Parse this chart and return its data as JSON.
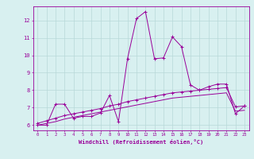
{
  "x_line1": [
    0,
    1,
    2,
    3,
    4,
    5,
    6,
    7,
    8,
    9,
    10,
    11,
    12,
    13,
    14,
    15,
    16,
    17,
    18,
    19,
    20,
    21,
    22,
    23
  ],
  "y_line1": [
    6.0,
    6.0,
    7.2,
    7.2,
    6.4,
    6.5,
    6.5,
    6.7,
    7.7,
    6.2,
    9.8,
    12.1,
    12.5,
    9.8,
    9.85,
    11.05,
    10.5,
    8.3,
    8.0,
    8.2,
    8.35,
    8.35,
    6.65,
    7.1
  ],
  "x_line2": [
    0,
    1,
    2,
    3,
    4,
    5,
    6,
    7,
    8,
    9,
    10,
    11,
    12,
    13,
    14,
    15,
    16,
    17,
    18,
    19,
    20,
    21,
    22,
    23
  ],
  "y_line2": [
    6.1,
    6.25,
    6.4,
    6.55,
    6.65,
    6.75,
    6.85,
    6.95,
    7.1,
    7.2,
    7.35,
    7.45,
    7.55,
    7.65,
    7.75,
    7.85,
    7.9,
    7.95,
    8.0,
    8.05,
    8.1,
    8.15,
    7.05,
    7.1
  ],
  "x_line3": [
    0,
    1,
    2,
    3,
    4,
    5,
    6,
    7,
    8,
    9,
    10,
    11,
    12,
    13,
    14,
    15,
    16,
    17,
    18,
    19,
    20,
    21,
    22,
    23
  ],
  "y_line3": [
    6.0,
    6.1,
    6.2,
    6.35,
    6.45,
    6.55,
    6.65,
    6.75,
    6.85,
    6.95,
    7.05,
    7.15,
    7.25,
    7.35,
    7.45,
    7.55,
    7.6,
    7.65,
    7.7,
    7.75,
    7.8,
    7.85,
    6.8,
    6.85
  ],
  "line_color": "#990099",
  "bg_color": "#d8f0f0",
  "grid_color": "#b8d8d8",
  "xlabel": "Windchill (Refroidissement éolien,°C)",
  "ylabel_ticks": [
    6,
    7,
    8,
    9,
    10,
    11,
    12
  ],
  "xlabel_ticks": [
    0,
    1,
    2,
    3,
    4,
    5,
    6,
    7,
    8,
    9,
    10,
    11,
    12,
    13,
    14,
    15,
    16,
    17,
    18,
    19,
    20,
    21,
    22,
    23
  ],
  "ylim": [
    5.7,
    12.8
  ],
  "xlim": [
    -0.5,
    23.5
  ]
}
